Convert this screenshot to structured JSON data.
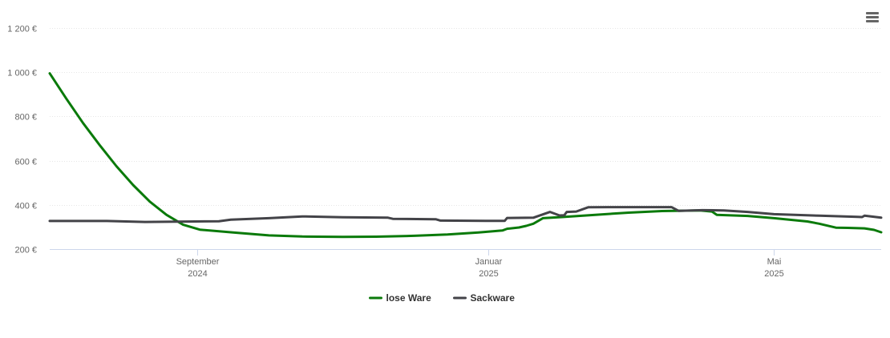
{
  "menu": {
    "icon": "hamburger-menu-icon"
  },
  "chart_data": {
    "type": "line",
    "title": "",
    "xlabel": "",
    "ylabel": "",
    "y_unit": "€",
    "ylim": [
      200,
      1200
    ],
    "yticks": [
      {
        "value": 200,
        "label": "200 €"
      },
      {
        "value": 400,
        "label": "400 €"
      },
      {
        "value": 600,
        "label": "600 €"
      },
      {
        "value": 800,
        "label": "800 €"
      },
      {
        "value": 1000,
        "label": "1 000 €"
      },
      {
        "value": 1200,
        "label": "1 200 €"
      }
    ],
    "xlim": [
      "2024-07-01",
      "2025-06-15"
    ],
    "xticks": [
      {
        "date": "2024-09-01",
        "month": "September",
        "year": "2024"
      },
      {
        "date": "2025-01-01",
        "month": "Januar",
        "year": "2025"
      },
      {
        "date": "2025-05-01",
        "month": "Mai",
        "year": "2025"
      }
    ],
    "grid": true,
    "legend_position": "bottom-center",
    "series": [
      {
        "name": "lose Ware",
        "color": "#0a7a0a",
        "points": [
          [
            "2024-07-01",
            995
          ],
          [
            "2024-07-08",
            880
          ],
          [
            "2024-07-15",
            770
          ],
          [
            "2024-07-22",
            670
          ],
          [
            "2024-07-29",
            575
          ],
          [
            "2024-08-05",
            490
          ],
          [
            "2024-08-12",
            415
          ],
          [
            "2024-08-19",
            355
          ],
          [
            "2024-08-26",
            310
          ],
          [
            "2024-09-02",
            288
          ],
          [
            "2024-09-16",
            275
          ],
          [
            "2024-10-01",
            262
          ],
          [
            "2024-10-15",
            257
          ],
          [
            "2024-11-01",
            255
          ],
          [
            "2024-11-15",
            256
          ],
          [
            "2024-12-01",
            260
          ],
          [
            "2024-12-15",
            266
          ],
          [
            "2024-12-28",
            275
          ],
          [
            "2025-01-07",
            284
          ],
          [
            "2025-01-09",
            292
          ],
          [
            "2025-01-14",
            298
          ],
          [
            "2025-01-17",
            305
          ],
          [
            "2025-01-20",
            315
          ],
          [
            "2025-01-24",
            340
          ],
          [
            "2025-02-01",
            345
          ],
          [
            "2025-02-15",
            355
          ],
          [
            "2025-03-01",
            365
          ],
          [
            "2025-03-15",
            372
          ],
          [
            "2025-03-31",
            375
          ],
          [
            "2025-04-05",
            370
          ],
          [
            "2025-04-07",
            355
          ],
          [
            "2025-04-20",
            350
          ],
          [
            "2025-05-01",
            340
          ],
          [
            "2025-05-15",
            325
          ],
          [
            "2025-05-20",
            315
          ],
          [
            "2025-05-27",
            297
          ],
          [
            "2025-06-01",
            296
          ],
          [
            "2025-06-08",
            294
          ],
          [
            "2025-06-12",
            287
          ],
          [
            "2025-06-15",
            276
          ]
        ]
      },
      {
        "name": "Sackware",
        "color": "#434348",
        "points": [
          [
            "2024-07-01",
            327
          ],
          [
            "2024-07-25",
            327
          ],
          [
            "2024-08-10",
            323
          ],
          [
            "2024-08-31",
            325
          ],
          [
            "2024-09-10",
            326
          ],
          [
            "2024-09-15",
            333
          ],
          [
            "2024-10-01",
            340
          ],
          [
            "2024-10-15",
            348
          ],
          [
            "2024-11-01",
            344
          ],
          [
            "2024-11-20",
            342
          ],
          [
            "2024-11-22",
            337
          ],
          [
            "2024-12-10",
            335
          ],
          [
            "2024-12-12",
            329
          ],
          [
            "2024-12-31",
            328
          ],
          [
            "2025-01-08",
            328
          ],
          [
            "2025-01-09",
            341
          ],
          [
            "2025-01-20",
            342
          ],
          [
            "2025-01-27",
            368
          ],
          [
            "2025-01-31",
            352
          ],
          [
            "2025-02-02",
            353
          ],
          [
            "2025-02-03",
            368
          ],
          [
            "2025-02-07",
            370
          ],
          [
            "2025-02-12",
            389
          ],
          [
            "2025-02-20",
            390
          ],
          [
            "2025-03-10",
            390
          ],
          [
            "2025-03-19",
            390
          ],
          [
            "2025-03-22",
            373
          ],
          [
            "2025-04-01",
            376
          ],
          [
            "2025-04-10",
            375
          ],
          [
            "2025-04-20",
            368
          ],
          [
            "2025-05-01",
            358
          ],
          [
            "2025-05-20",
            351
          ],
          [
            "2025-06-05",
            346
          ],
          [
            "2025-06-07",
            345
          ],
          [
            "2025-06-08",
            351
          ],
          [
            "2025-06-15",
            342
          ]
        ]
      }
    ]
  }
}
